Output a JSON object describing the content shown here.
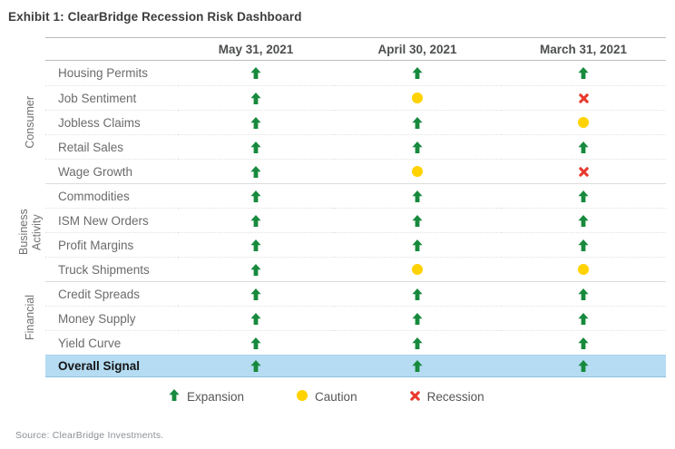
{
  "title": "Exhibit 1: ClearBridge Recession Risk Dashboard",
  "source": "Source: ClearBridge Investments.",
  "colors": {
    "expansion": "#178A3D",
    "caution": "#FFD200",
    "recession": "#E8392D",
    "highlight": "#B5DCF2"
  },
  "chart_data": {
    "type": "table",
    "title": "ClearBridge Recession Risk Dashboard",
    "columns": [
      "May 31, 2021",
      "April 30, 2021",
      "March 31, 2021"
    ],
    "groups": [
      {
        "label": "Consumer",
        "rows": [
          {
            "label": "Housing Permits",
            "signals": [
              "expansion",
              "expansion",
              "expansion"
            ]
          },
          {
            "label": "Job Sentiment",
            "signals": [
              "expansion",
              "caution",
              "recession"
            ]
          },
          {
            "label": "Jobless Claims",
            "signals": [
              "expansion",
              "expansion",
              "caution"
            ]
          },
          {
            "label": "Retail Sales",
            "signals": [
              "expansion",
              "expansion",
              "expansion"
            ]
          },
          {
            "label": "Wage Growth",
            "signals": [
              "expansion",
              "caution",
              "recession"
            ]
          }
        ]
      },
      {
        "label": "Business Activity",
        "rows": [
          {
            "label": "Commodities",
            "signals": [
              "expansion",
              "expansion",
              "expansion"
            ]
          },
          {
            "label": "ISM New Orders",
            "signals": [
              "expansion",
              "expansion",
              "expansion"
            ]
          },
          {
            "label": "Profit Margins",
            "signals": [
              "expansion",
              "expansion",
              "expansion"
            ]
          },
          {
            "label": "Truck Shipments",
            "signals": [
              "expansion",
              "caution",
              "caution"
            ]
          }
        ]
      },
      {
        "label": "Financial",
        "rows": [
          {
            "label": "Credit Spreads",
            "signals": [
              "expansion",
              "expansion",
              "expansion"
            ]
          },
          {
            "label": "Money Supply",
            "signals": [
              "expansion",
              "expansion",
              "expansion"
            ]
          },
          {
            "label": "Yield Curve",
            "signals": [
              "expansion",
              "expansion",
              "expansion"
            ]
          }
        ]
      }
    ],
    "overall": {
      "label": "Overall Signal",
      "signals": [
        "expansion",
        "expansion",
        "expansion"
      ]
    },
    "legend": [
      {
        "type": "expansion",
        "label": "Expansion"
      },
      {
        "type": "caution",
        "label": "Caution"
      },
      {
        "type": "recession",
        "label": "Recession"
      }
    ]
  }
}
